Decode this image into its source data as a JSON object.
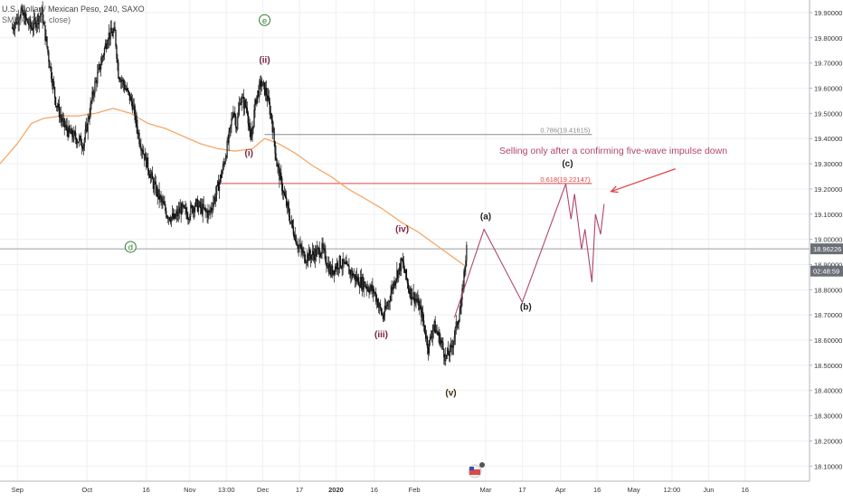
{
  "header": {
    "symbol_line": "U.S. Dollar / Mexican Peso, 240, SAXO",
    "indicator_line": "SMMA (200, close)"
  },
  "annotation_text": "Selling only after a confirming five-wave impulse down",
  "chart_data": {
    "type": "candlestick",
    "price_axis": {
      "ticks": [
        "19.90000",
        "19.80000",
        "19.70000",
        "19.60000",
        "19.50000",
        "19.40000",
        "19.30000",
        "19.20000",
        "19.10000",
        "19.00000",
        "18.90000",
        "18.80000",
        "18.70000",
        "18.60000",
        "18.50000",
        "18.40000",
        "18.30000",
        "18.20000",
        "18.10000"
      ],
      "tick_values": [
        19.9,
        19.8,
        19.7,
        19.6,
        19.5,
        19.4,
        19.3,
        19.2,
        19.1,
        19.0,
        18.9,
        18.8,
        18.7,
        18.6,
        18.5,
        18.4,
        18.3,
        18.2,
        18.1
      ],
      "range": [
        18.04,
        19.95
      ],
      "current_price_label": "18.96226",
      "current_price": 18.96226,
      "countdown_label": "02:48:59",
      "countdown_price": 18.874
    },
    "time_axis": {
      "labels": [
        "Sep",
        "Oct",
        "16",
        "Nov",
        "13:00",
        "Dec",
        "17",
        "2020",
        "16",
        "Feb",
        "Mar",
        "17",
        "Apr",
        "16",
        "May",
        "12:00",
        "Jun",
        "16"
      ],
      "label_index": [
        0,
        40,
        74,
        99,
        120,
        141,
        162,
        183,
        205,
        228,
        269,
        290,
        312,
        333,
        354,
        376,
        397,
        418
      ],
      "bar_range": [
        -10,
        455
      ],
      "grid": true
    },
    "price_series_anchors": [
      [
        -3,
        19.84
      ],
      [
        2,
        19.9
      ],
      [
        8,
        19.84
      ],
      [
        14,
        19.9
      ],
      [
        18,
        19.72
      ],
      [
        22,
        19.55
      ],
      [
        26,
        19.46
      ],
      [
        30,
        19.42
      ],
      [
        34,
        19.4
      ],
      [
        38,
        19.38
      ],
      [
        40,
        19.45
      ],
      [
        44,
        19.6
      ],
      [
        48,
        19.7
      ],
      [
        52,
        19.81
      ],
      [
        56,
        19.82
      ],
      [
        58,
        19.66
      ],
      [
        62,
        19.6
      ],
      [
        66,
        19.54
      ],
      [
        70,
        19.4
      ],
      [
        74,
        19.31
      ],
      [
        78,
        19.22
      ],
      [
        82,
        19.16
      ],
      [
        86,
        19.1
      ],
      [
        90,
        19.08
      ],
      [
        94,
        19.12
      ],
      [
        98,
        19.1
      ],
      [
        102,
        19.14
      ],
      [
        106,
        19.12
      ],
      [
        110,
        19.1
      ],
      [
        114,
        19.18
      ],
      [
        118,
        19.28
      ],
      [
        122,
        19.42
      ],
      [
        124,
        19.52
      ],
      [
        126,
        19.45
      ],
      [
        128,
        19.56
      ],
      [
        132,
        19.52
      ],
      [
        134,
        19.38
      ],
      [
        137,
        19.56
      ],
      [
        140,
        19.62
      ],
      [
        143,
        19.58
      ],
      [
        146,
        19.48
      ],
      [
        149,
        19.3
      ],
      [
        153,
        19.18
      ],
      [
        157,
        19.07
      ],
      [
        161,
        18.98
      ],
      [
        165,
        18.93
      ],
      [
        170,
        18.94
      ],
      [
        175,
        18.96
      ],
      [
        180,
        18.87
      ],
      [
        185,
        18.91
      ],
      [
        190,
        18.88
      ],
      [
        195,
        18.84
      ],
      [
        200,
        18.82
      ],
      [
        205,
        18.79
      ],
      [
        210,
        18.69
      ],
      [
        213,
        18.75
      ],
      [
        217,
        18.85
      ],
      [
        221,
        18.91
      ],
      [
        225,
        18.8
      ],
      [
        229,
        18.76
      ],
      [
        232,
        18.71
      ],
      [
        236,
        18.57
      ],
      [
        239,
        18.66
      ],
      [
        243,
        18.6
      ],
      [
        246,
        18.53
      ],
      [
        249,
        18.56
      ],
      [
        252,
        18.65
      ],
      [
        255,
        18.74
      ],
      [
        257,
        18.9
      ],
      [
        258,
        18.96
      ]
    ],
    "sma_line": {
      "name": "SMMA (200, close)",
      "color": "#f5a15b",
      "points": [
        [
          -10,
          19.3
        ],
        [
          0,
          19.38
        ],
        [
          8,
          19.46
        ],
        [
          15,
          19.48
        ],
        [
          25,
          19.49
        ],
        [
          35,
          19.49
        ],
        [
          45,
          19.5
        ],
        [
          55,
          19.52
        ],
        [
          65,
          19.5
        ],
        [
          75,
          19.46
        ],
        [
          85,
          19.44
        ],
        [
          95,
          19.41
        ],
        [
          105,
          19.38
        ],
        [
          115,
          19.36
        ],
        [
          125,
          19.35
        ],
        [
          135,
          19.36
        ],
        [
          142,
          19.4
        ],
        [
          150,
          19.38
        ],
        [
          160,
          19.34
        ],
        [
          170,
          19.29
        ],
        [
          180,
          19.25
        ],
        [
          190,
          19.2
        ],
        [
          200,
          19.16
        ],
        [
          210,
          19.12
        ],
        [
          220,
          19.07
        ],
        [
          230,
          19.03
        ],
        [
          240,
          18.98
        ],
        [
          250,
          18.93
        ],
        [
          258,
          18.89
        ]
      ]
    },
    "horizontal_lines": [
      {
        "label": "0.786(19.41615)",
        "value": 19.41615,
        "color": "#8a8a8a",
        "from_bar": 142,
        "to_bar": 330
      },
      {
        "label": "0.618(19.22147)",
        "value": 19.22147,
        "color": "#e04545",
        "from_bar": 116,
        "to_bar": 330
      },
      {
        "label": "",
        "value": 18.96226,
        "color": "#9aa0a6",
        "from_bar": -10,
        "to_bar": 455
      }
    ],
    "projection": {
      "color": "#b0456c",
      "points": [
        [
          251,
          18.69
        ],
        [
          268,
          19.04
        ],
        [
          290,
          18.75
        ],
        [
          315,
          19.22
        ],
        [
          318,
          19.08
        ],
        [
          320,
          19.18
        ],
        [
          324,
          18.96
        ],
        [
          326,
          19.04
        ],
        [
          330,
          18.83
        ],
        [
          332,
          19.1
        ],
        [
          335,
          19.02
        ],
        [
          337,
          19.14
        ]
      ]
    },
    "wave_labels": [
      {
        "text": "(ii)",
        "bar": 142,
        "price": 19.7,
        "color": "#7a1f3d"
      },
      {
        "text": "(i)",
        "bar": 133,
        "price": 19.33,
        "color": "#7a1f3d"
      },
      {
        "text": "(iv)",
        "bar": 221,
        "price": 19.03,
        "color": "#7a1f3d"
      },
      {
        "text": "(iii)",
        "bar": 209,
        "price": 18.61,
        "color": "#7a1f3d"
      },
      {
        "text": "(v)",
        "bar": 249,
        "price": 18.38,
        "color": "#3a2a10"
      },
      {
        "text": "(a)",
        "bar": 269,
        "price": 19.08,
        "color": "#222222"
      },
      {
        "text": "(b)",
        "bar": 292,
        "price": 18.72,
        "color": "#222222"
      },
      {
        "text": "(c)",
        "bar": 316,
        "price": 19.29,
        "color": "#222222"
      }
    ],
    "circle_labels": [
      {
        "text": "e",
        "bar": 142,
        "price": 19.87,
        "color": "#2e7d32"
      },
      {
        "text": "d",
        "bar": 65,
        "price": 18.97,
        "color": "#2e7d32"
      }
    ],
    "annotation_arrow": {
      "from": [
        378,
        19.28
      ],
      "to": [
        341,
        19.19
      ],
      "color": "#e04545"
    }
  }
}
